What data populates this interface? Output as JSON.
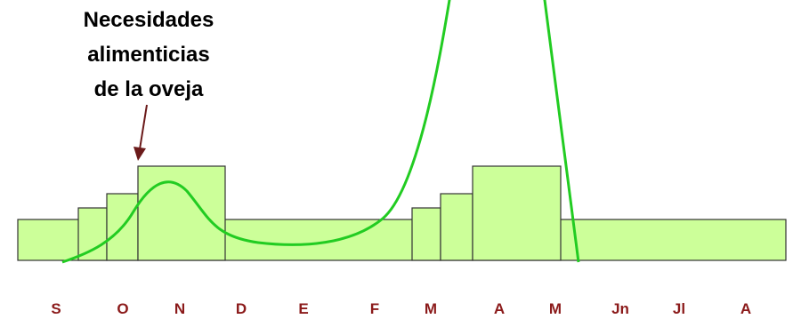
{
  "title_lines": [
    "Necesidades",
    "alimenticias",
    "de la oveja"
  ],
  "months": [
    "S",
    "O",
    "N",
    "D",
    "E",
    "F",
    "M",
    "A",
    "M",
    "Jn",
    "Jl",
    "A"
  ]
}
